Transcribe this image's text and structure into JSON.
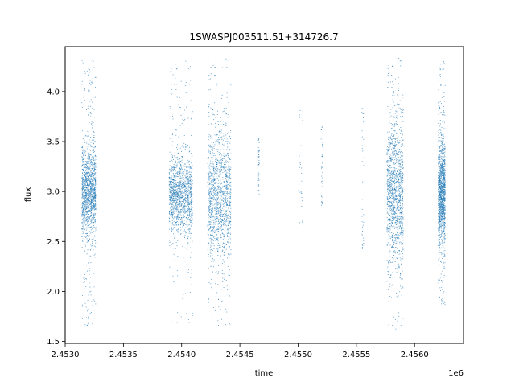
{
  "chart_data": {
    "type": "scatter",
    "title": "1SWASPJ003511.51+314726.7",
    "xlabel": "time",
    "ylabel": "flux",
    "x_offset_label": "1e6",
    "xlim": [
      2453000,
      2456420
    ],
    "ylim": [
      1.48,
      4.45
    ],
    "x_ticks": [
      2453000,
      2453500,
      2454000,
      2454500,
      2455000,
      2455500,
      2456000
    ],
    "x_tick_labels": [
      "2.4530",
      "2.4535",
      "2.4540",
      "2.4545",
      "2.4550",
      "2.4555",
      "2.4560"
    ],
    "y_ticks": [
      1.5,
      2.0,
      2.5,
      3.0,
      3.5,
      4.0
    ],
    "y_tick_labels": [
      "1.5",
      "2.0",
      "2.5",
      "3.0",
      "3.5",
      "4.0"
    ],
    "grid": false,
    "marker_color": "#1f77b4",
    "observing_seasons": [
      {
        "x_start": 2453140,
        "x_end": 2453260,
        "center": 3.0,
        "core_spread": 0.22,
        "min": 1.65,
        "max": 4.32,
        "density": "high"
      },
      {
        "x_start": 2453890,
        "x_end": 2454090,
        "center": 2.97,
        "core_spread": 0.2,
        "min": 1.65,
        "max": 4.32,
        "density": "high"
      },
      {
        "x_start": 2454220,
        "x_end": 2454420,
        "center": 2.95,
        "core_spread": 0.32,
        "min": 1.6,
        "max": 4.35,
        "density": "high"
      },
      {
        "x_start": 2454655,
        "x_end": 2454665,
        "center": 3.2,
        "core_spread": 0.25,
        "min": 2.95,
        "max": 3.55,
        "density": "sparse"
      },
      {
        "x_start": 2455000,
        "x_end": 2455040,
        "center": 3.1,
        "core_spread": 0.3,
        "min": 2.65,
        "max": 3.88,
        "density": "sparse"
      },
      {
        "x_start": 2455195,
        "x_end": 2455210,
        "center": 3.0,
        "core_spread": 0.25,
        "min": 2.82,
        "max": 3.68,
        "density": "sparse"
      },
      {
        "x_start": 2455545,
        "x_end": 2455560,
        "center": 3.2,
        "core_spread": 0.25,
        "min": 2.42,
        "max": 3.85,
        "density": "sparse"
      },
      {
        "x_start": 2455760,
        "x_end": 2455900,
        "center": 2.97,
        "core_spread": 0.38,
        "min": 1.62,
        "max": 4.35,
        "density": "high"
      },
      {
        "x_start": 2456200,
        "x_end": 2456260,
        "center": 2.98,
        "core_spread": 0.25,
        "min": 1.82,
        "max": 4.32,
        "density": "high"
      }
    ]
  }
}
